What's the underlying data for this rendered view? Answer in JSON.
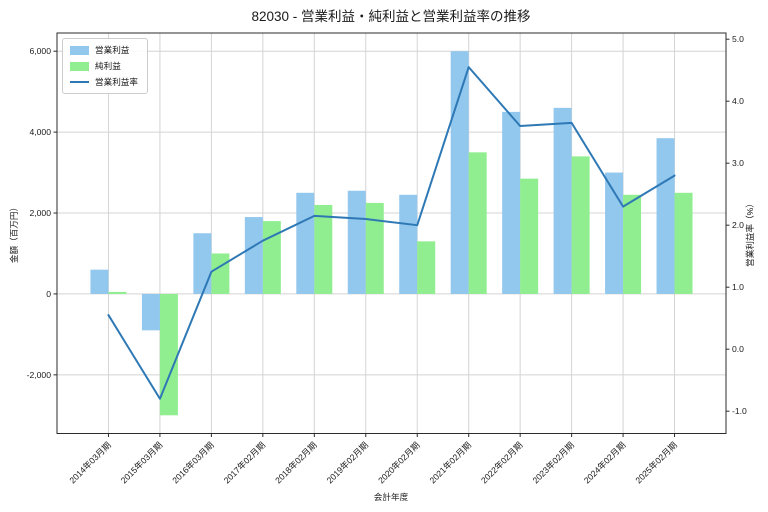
{
  "chart_data": {
    "type": "bar",
    "subtype": "grouped-bars-with-line-overlay",
    "title": "82030 - 営業利益・純利益と営業利益率の推移",
    "xlabel": "会計年度",
    "ylabel_left": "金額（百万円）",
    "ylabel_right": "営業利益率（%）",
    "grid": true,
    "legend_position": "upper left",
    "categories": [
      "2014年03月期",
      "2015年03月期",
      "2016年03月期",
      "2017年02月期",
      "2018年02月期",
      "2019年02月期",
      "2020年02月期",
      "2021年02月期",
      "2022年02月期",
      "2023年02月期",
      "2024年02月期",
      "2025年02月期"
    ],
    "series": [
      {
        "name": "営業利益",
        "type": "bar",
        "axis": "left",
        "color": "#92c7ee",
        "values": [
          600,
          -900,
          1500,
          1900,
          2500,
          2550,
          2450,
          6000,
          4500,
          4600,
          3000,
          3850
        ]
      },
      {
        "name": "純利益",
        "type": "bar",
        "axis": "left",
        "color": "#90ee90",
        "values": [
          50,
          -3000,
          1000,
          1800,
          2200,
          2250,
          1300,
          3500,
          2850,
          3400,
          2450,
          2500
        ]
      },
      {
        "name": "営業利益率",
        "type": "line",
        "axis": "right",
        "color": "#2e79b5",
        "values": [
          0.55,
          -0.8,
          1.25,
          1.75,
          2.15,
          2.1,
          2.0,
          4.55,
          3.6,
          3.65,
          2.3,
          2.8
        ]
      }
    ],
    "left_axis": {
      "lim": [
        -3450,
        6450
      ],
      "ticks": [
        {
          "value": 6000,
          "label": "6,000"
        },
        {
          "value": 4000,
          "label": "4,000"
        },
        {
          "value": 2000,
          "label": "2,000"
        },
        {
          "value": 0,
          "label": "0"
        },
        {
          "value": -2000,
          "label": "-2,000"
        }
      ]
    },
    "right_axis": {
      "lim": [
        -1.36,
        5.1
      ],
      "ticks": [
        {
          "value": 5.0,
          "label": "5.0"
        },
        {
          "value": 4.0,
          "label": "4.0"
        },
        {
          "value": 3.0,
          "label": "3.0"
        },
        {
          "value": 2.0,
          "label": "2.0"
        },
        {
          "value": 1.0,
          "label": "1.0"
        },
        {
          "value": 0.0,
          "label": "0.0"
        },
        {
          "value": -1.0,
          "label": "-1.0"
        }
      ]
    },
    "colors": {
      "grid": "#d4d4d4",
      "spine": "#2b2b2b",
      "background": "#ffffff"
    }
  }
}
